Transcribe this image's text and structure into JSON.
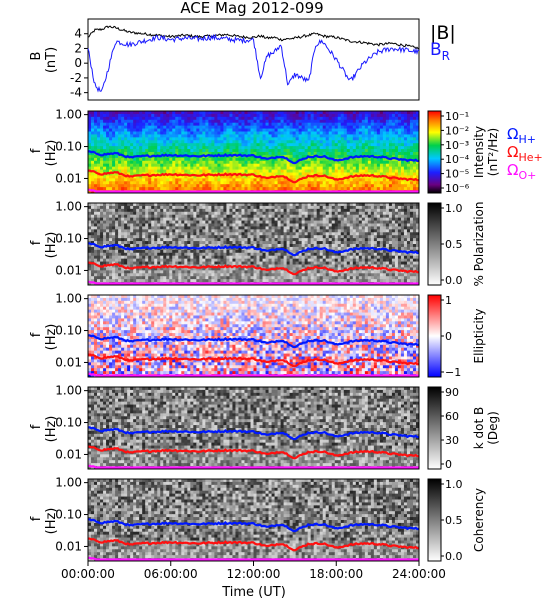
{
  "title": "ACE Mag 2012-099",
  "xlabel": "Time (UT)",
  "xticks": [
    "00:00:00",
    "06:00:00",
    "12:00:00",
    "18:00:00",
    "24:00:00"
  ],
  "colors": {
    "total_field": "#000000",
    "radial_field": "#1a1aff",
    "proton_gyro": "#0018ff",
    "helium_gyro": "#ff1010",
    "oxygen_gyro": "#ff10ff"
  },
  "labels": {
    "total_field": "|B|",
    "radial_field": "B",
    "radial_field_sub": "R",
    "omega": "Ω",
    "proton": "H+",
    "helium": "He+",
    "oxygen": "O+"
  },
  "chart_data": [
    {
      "type": "line",
      "panel": "field",
      "ylabel": "B",
      "yunit": "(nT)",
      "ylim": [
        -5,
        6
      ],
      "yticks": [
        "4",
        "2",
        "0",
        "-2",
        "-4"
      ],
      "x_hours": [
        0,
        0.5,
        1,
        1.5,
        2,
        3,
        4,
        5,
        6,
        7,
        8,
        9,
        10,
        11,
        12,
        12.5,
        13,
        13.5,
        14,
        14.5,
        15,
        15.5,
        16,
        16.5,
        17,
        18,
        19,
        20,
        21,
        22,
        23,
        24
      ],
      "series": [
        {
          "name": "|B|",
          "values": [
            3.5,
            4.5,
            4.6,
            5.0,
            4.8,
            4.2,
            4.0,
            3.8,
            3.6,
            3.8,
            3.6,
            3.7,
            3.9,
            3.6,
            3.5,
            3.7,
            3.4,
            3.5,
            3.2,
            3.3,
            3.4,
            3.6,
            3.8,
            4.0,
            3.7,
            3.5,
            3.0,
            2.8,
            2.5,
            2.7,
            2.4,
            2.0
          ]
        },
        {
          "name": "B_R",
          "values": [
            2.0,
            -3.0,
            -4.0,
            -0.5,
            3.0,
            2.5,
            3.0,
            3.5,
            3.2,
            3.4,
            3.3,
            3.5,
            3.3,
            3.1,
            3.2,
            -2.0,
            1.0,
            1.5,
            2.5,
            -3.0,
            -1.5,
            -2.0,
            -2.5,
            2.5,
            3.0,
            0.5,
            -2.5,
            0.0,
            1.5,
            2.0,
            1.8,
            1.5
          ]
        }
      ]
    },
    {
      "type": "heatmap",
      "panel": "intensity",
      "ylabel": "f",
      "yunit": "(Hz)",
      "yscale": "log",
      "yticks": [
        "1.00",
        "0.10",
        "0.01"
      ],
      "colorbar_label": "Intensity",
      "colorbar_unit": "(nT²/Hz)",
      "colorbar_ticks": [
        "10⁻¹",
        "10⁻²",
        "10⁻³",
        "10⁻⁴",
        "10⁻⁵",
        "10⁻⁶"
      ],
      "colorscale": "rainbow",
      "overlays": [
        "Ω H+",
        "Ω He+",
        "Ω O+"
      ]
    },
    {
      "type": "heatmap",
      "panel": "polarization",
      "ylabel": "f",
      "yunit": "(Hz)",
      "yscale": "log",
      "yticks": [
        "1.00",
        "0.10",
        "0.01"
      ],
      "colorbar_label": "% Polarization",
      "colorbar_ticks": [
        "1.0",
        "0.5",
        "0.0"
      ],
      "colorscale": "gray"
    },
    {
      "type": "heatmap",
      "panel": "ellipticity",
      "ylabel": "f",
      "yunit": "(Hz)",
      "yscale": "log",
      "yticks": [
        "1.00",
        "0.10",
        "0.01"
      ],
      "colorbar_label": "Ellipticity",
      "colorbar_ticks": [
        "1",
        "0",
        "−1"
      ],
      "colorscale": "blue-white-red"
    },
    {
      "type": "heatmap",
      "panel": "kdotb",
      "ylabel": "f",
      "yunit": "(Hz)",
      "yscale": "log",
      "yticks": [
        "1.00",
        "0.10",
        "0.01"
      ],
      "colorbar_label": "k dot B",
      "colorbar_unit": "(Deg)",
      "colorbar_ticks": [
        "90",
        "60",
        "30",
        "0"
      ],
      "colorscale": "gray"
    },
    {
      "type": "heatmap",
      "panel": "coherency",
      "ylabel": "f",
      "yunit": "(Hz)",
      "yscale": "log",
      "yticks": [
        "1.00",
        "0.10",
        "0.01"
      ],
      "colorbar_label": "Coherency",
      "colorbar_ticks": [
        "1.0",
        "0.5",
        "0.0"
      ],
      "colorscale": "gray"
    }
  ]
}
